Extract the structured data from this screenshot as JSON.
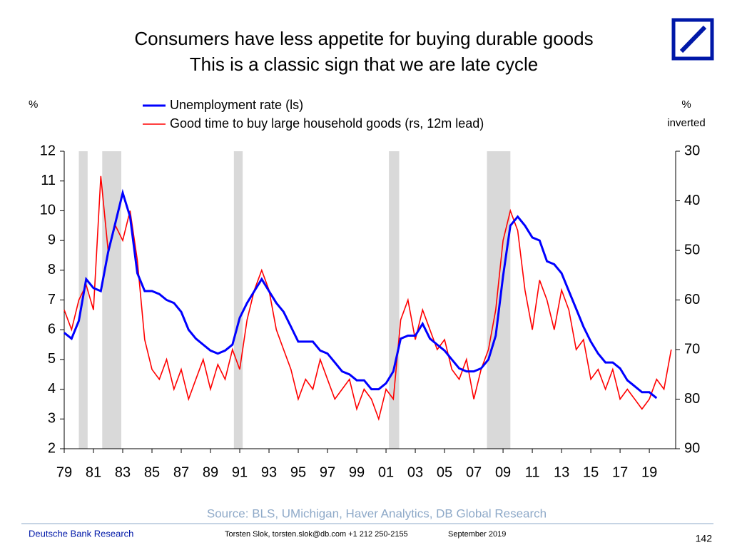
{
  "chart_data": {
    "type": "line",
    "title": "Consumers have less appetite for buying durable goods",
    "subtitle": "This is a classic sign that we are late cycle",
    "y_label": "%",
    "y2_label": "%",
    "y2_label_note": "inverted",
    "x": [
      1979.0,
      1979.5,
      1980.0,
      1980.5,
      1981.0,
      1981.5,
      1982.0,
      1982.5,
      1983.0,
      1983.5,
      1984.0,
      1984.5,
      1985.0,
      1985.5,
      1986.0,
      1986.5,
      1987.0,
      1987.5,
      1988.0,
      1988.5,
      1989.0,
      1989.5,
      1990.0,
      1990.5,
      1991.0,
      1991.5,
      1992.0,
      1992.5,
      1993.0,
      1993.5,
      1994.0,
      1994.5,
      1995.0,
      1995.5,
      1996.0,
      1996.5,
      1997.0,
      1997.5,
      1998.0,
      1998.5,
      1999.0,
      1999.5,
      2000.0,
      2000.5,
      2001.0,
      2001.5,
      2002.0,
      2002.5,
      2003.0,
      2003.5,
      2004.0,
      2004.5,
      2005.0,
      2005.5,
      2006.0,
      2006.5,
      2007.0,
      2007.5,
      2008.0,
      2008.5,
      2009.0,
      2009.5,
      2010.0,
      2010.5,
      2011.0,
      2011.5,
      2012.0,
      2012.5,
      2013.0,
      2013.5,
      2014.0,
      2014.5,
      2015.0,
      2015.5,
      2016.0,
      2016.5,
      2017.0,
      2017.5,
      2018.0,
      2018.5,
      2019.0,
      2019.5,
      2020.0,
      2020.5
    ],
    "series": [
      {
        "name": "Unemployment rate (ls)",
        "color": "#0000ff",
        "axis": "y",
        "values": [
          5.9,
          5.7,
          6.3,
          7.7,
          7.4,
          7.3,
          8.6,
          9.6,
          10.6,
          9.8,
          7.9,
          7.3,
          7.3,
          7.2,
          7.0,
          6.9,
          6.6,
          6.0,
          5.7,
          5.5,
          5.3,
          5.2,
          5.3,
          5.5,
          6.4,
          6.9,
          7.3,
          7.7,
          7.3,
          6.9,
          6.6,
          6.1,
          5.6,
          5.6,
          5.6,
          5.3,
          5.2,
          4.9,
          4.6,
          4.5,
          4.3,
          4.3,
          4.0,
          4.0,
          4.2,
          4.6,
          5.7,
          5.8,
          5.8,
          6.2,
          5.7,
          5.5,
          5.3,
          5.0,
          4.7,
          4.6,
          4.6,
          4.7,
          5.0,
          5.8,
          7.8,
          9.5,
          9.8,
          9.5,
          9.1,
          9.0,
          8.3,
          8.2,
          7.9,
          7.3,
          6.7,
          6.1,
          5.6,
          5.2,
          4.9,
          4.9,
          4.7,
          4.3,
          4.1,
          3.9,
          3.9,
          3.7,
          null,
          null
        ]
      },
      {
        "name": "Good time to buy large household goods (rs, 12m lead)",
        "color": "#ff0000",
        "axis": "y2",
        "values": [
          62,
          66,
          60,
          57,
          62,
          35,
          50,
          45,
          48,
          42,
          52,
          68,
          74,
          76,
          72,
          78,
          74,
          80,
          76,
          72,
          78,
          73,
          76,
          70,
          74,
          64,
          58,
          54,
          58,
          66,
          70,
          74,
          80,
          76,
          78,
          72,
          76,
          80,
          78,
          76,
          82,
          78,
          80,
          84,
          78,
          80,
          64,
          60,
          68,
          62,
          66,
          70,
          68,
          74,
          76,
          72,
          80,
          74,
          70,
          62,
          48,
          42,
          46,
          58,
          66,
          56,
          60,
          66,
          58,
          62,
          70,
          68,
          76,
          74,
          78,
          74,
          80,
          78,
          80,
          82,
          80,
          76,
          78,
          70
        ]
      }
    ],
    "xlim": [
      1979,
      2020.8
    ],
    "xticks": [
      {
        "value": 1979,
        "label": "79"
      },
      {
        "value": 1981,
        "label": "81"
      },
      {
        "value": 1983,
        "label": "83"
      },
      {
        "value": 1985,
        "label": "85"
      },
      {
        "value": 1987,
        "label": "87"
      },
      {
        "value": 1989,
        "label": "89"
      },
      {
        "value": 1991,
        "label": "91"
      },
      {
        "value": 1993,
        "label": "93"
      },
      {
        "value": 1995,
        "label": "95"
      },
      {
        "value": 1997,
        "label": "97"
      },
      {
        "value": 1999,
        "label": "99"
      },
      {
        "value": 2001,
        "label": "01"
      },
      {
        "value": 2003,
        "label": "03"
      },
      {
        "value": 2005,
        "label": "05"
      },
      {
        "value": 2007,
        "label": "07"
      },
      {
        "value": 2009,
        "label": "09"
      },
      {
        "value": 2011,
        "label": "11"
      },
      {
        "value": 2013,
        "label": "13"
      },
      {
        "value": 2015,
        "label": "15"
      },
      {
        "value": 2017,
        "label": "17"
      },
      {
        "value": 2019,
        "label": "19"
      }
    ],
    "ylim": [
      2,
      12
    ],
    "yticks": [
      2,
      3,
      4,
      5,
      6,
      7,
      8,
      9,
      10,
      11,
      12
    ],
    "y2lim": [
      90,
      30
    ],
    "y2ticks": [
      90,
      80,
      70,
      60,
      50,
      40,
      30
    ],
    "shaded_periods": [
      [
        1980.0,
        1980.6
      ],
      [
        1981.6,
        1982.9
      ],
      [
        1990.6,
        1991.2
      ],
      [
        2001.2,
        2001.9
      ],
      [
        2007.9,
        2009.5
      ]
    ],
    "shade_color": "#d9d9d9",
    "source": "Source: BLS, UMichigan, Haver Analytics, DB Global Research",
    "footer_left": "Deutsche Bank Research",
    "footer_author": "Torsten Slok, torsten.slok@db.com  +1 212 250-2155",
    "footer_date": "September 2019",
    "page_number": "142"
  }
}
